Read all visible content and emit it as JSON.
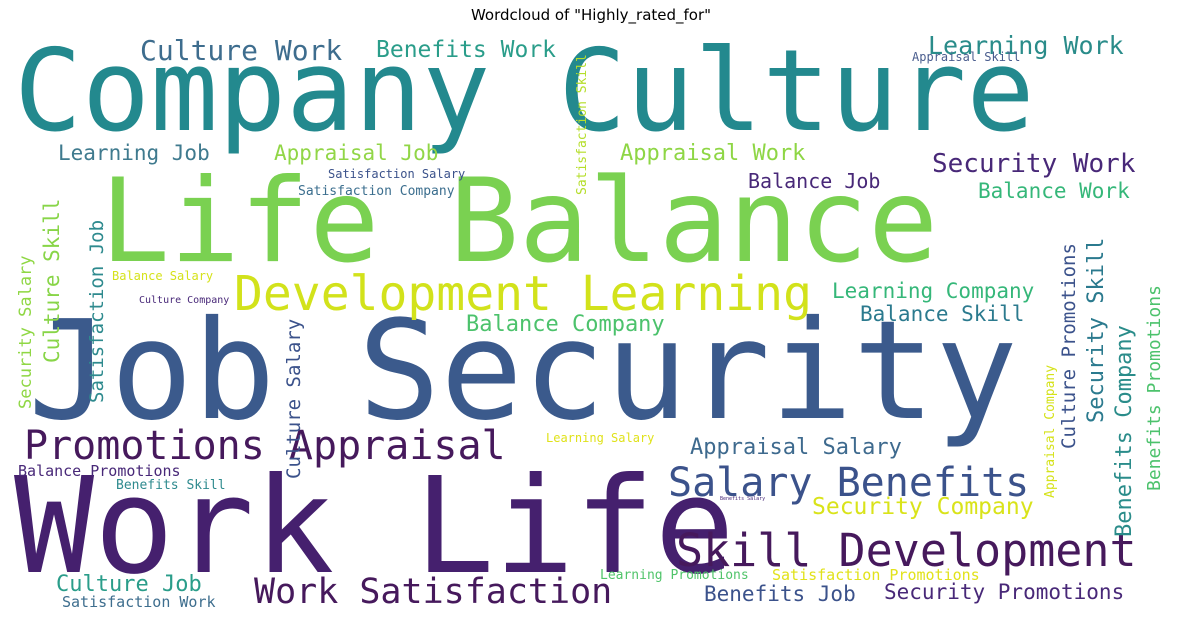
{
  "title": "Wordcloud of \"Highly_rated_for\"",
  "words": {
    "company_culture": "Company Culture",
    "life_balance": "Life Balance",
    "job_security": "Job Security",
    "work_life": "Work Life",
    "development_learning": "Development Learning",
    "promotions_appraisal": "Promotions Appraisal",
    "skill_development": "Skill Development",
    "salary_benefits": "Salary Benefits",
    "work_satisfaction": "Work Satisfaction",
    "culture_work": "Culture Work",
    "benefits_work": "Benefits Work",
    "learning_work": "Learning Work",
    "appraisal_skill": "Appraisal Skill",
    "learning_job": "Learning Job",
    "appraisal_job": "Appraisal Job",
    "appraisal_work": "Appraisal Work",
    "security_work": "Security Work",
    "satisfaction_salary": "Satisfaction Salary",
    "satisfaction_company": "Satisfaction Company",
    "balance_job": "Balance Job",
    "balance_work": "Balance Work",
    "balance_salary": "Balance Salary",
    "culture_company": "Culture Company",
    "learning_company": "Learning Company",
    "balance_skill": "Balance Skill",
    "balance_company": "Balance Company",
    "appraisal_salary": "Appraisal Salary",
    "learning_salary": "Learning Salary",
    "balance_promotions": "Balance Promotions",
    "benefits_skill": "Benefits Skill",
    "benefits_salary": "Benefits Salary",
    "security_company": "Security Company",
    "culture_job": "Culture Job",
    "satisfaction_work": "Satisfaction Work",
    "learning_promotions": "Learning Promotions",
    "satisfaction_promotions": "Satisfaction Promotions",
    "benefits_job": "Benefits Job",
    "security_promotions": "Security Promotions",
    "satisfaction_skill": "Satisfaction Skill",
    "satisfaction_job": "Satisfaction Job",
    "security_salary": "Security Salary",
    "culture_skill": "Culture Skill",
    "culture_salary": "Culture Salary",
    "culture_promotions": "Culture Promotions",
    "security_skill": "Security Skill",
    "benefits_company": "Benefits Company",
    "benefits_promotions": "Benefits Promotions",
    "appraisal_company": "Appraisal Company"
  },
  "colors": {
    "dark_purple": "#46195c",
    "purple": "#482878",
    "dark_blue": "#3b528b",
    "blue": "#31688e",
    "teal": "#26828e",
    "teal_green": "#1f9e89",
    "green": "#35b779",
    "light_green": "#6ece58",
    "lime": "#b5de2b",
    "yellow": "#d5e21a"
  }
}
